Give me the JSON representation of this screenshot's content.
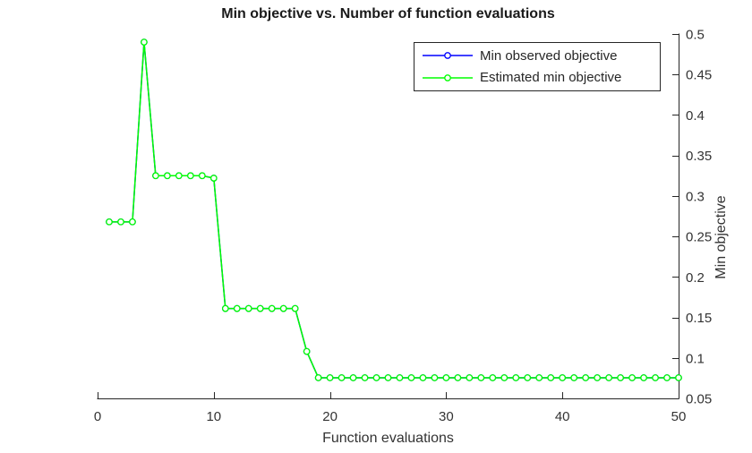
{
  "title": "Min objective vs. Number of function evaluations",
  "colors": {
    "observed_series": "#0000ff",
    "estimated_series": "#00ff00",
    "axis_line": "#262626",
    "tick_text": "#333333",
    "title_text": "#1a1a1a",
    "background": "#ffffff",
    "legend_border": "#262626",
    "marker_fill": "#ffffff"
  },
  "legend": {
    "position": "top-right",
    "items": [
      {
        "label": "Min observed objective",
        "color": "#0000ff",
        "marker": "circle"
      },
      {
        "label": "Estimated min objective",
        "color": "#00ff00",
        "marker": "circle"
      }
    ]
  },
  "chart_data": {
    "type": "line",
    "title": "Min objective vs. Number of function evaluations",
    "xlabel": "Function evaluations",
    "ylabel": "Min objective",
    "xlim": [
      0,
      50
    ],
    "ylim": [
      0.05,
      0.5
    ],
    "xticks": [
      0,
      10,
      20,
      30,
      40,
      50
    ],
    "xtick_labels": [
      "0",
      "10",
      "20",
      "30",
      "40",
      "50"
    ],
    "yticks": [
      0.05,
      0.1,
      0.15,
      0.2,
      0.25,
      0.3,
      0.35,
      0.4,
      0.45,
      0.5
    ],
    "ytick_labels": [
      "0.05",
      "0.1",
      "0.15",
      "0.2",
      "0.25",
      "0.3",
      "0.35",
      "0.4",
      "0.45",
      "0.5"
    ],
    "y_axis_location": "right",
    "grid": false,
    "x": [
      1,
      2,
      3,
      4,
      5,
      6,
      7,
      8,
      9,
      10,
      11,
      12,
      13,
      14,
      15,
      16,
      17,
      18,
      19,
      20,
      21,
      22,
      23,
      24,
      25,
      26,
      27,
      28,
      29,
      30,
      31,
      32,
      33,
      34,
      35,
      36,
      37,
      38,
      39,
      40,
      41,
      42,
      43,
      44,
      45,
      46,
      47,
      48,
      49,
      50
    ],
    "series": [
      {
        "name": "Min observed objective",
        "color": "#0000ff",
        "marker": "circle",
        "hidden_behind": "Estimated min objective",
        "values": [
          0.268,
          0.268,
          0.268,
          0.49,
          0.325,
          0.325,
          0.325,
          0.325,
          0.325,
          0.322,
          0.161,
          0.161,
          0.161,
          0.161,
          0.161,
          0.161,
          0.161,
          0.108,
          0.0755,
          0.0755,
          0.0755,
          0.0755,
          0.0755,
          0.0755,
          0.0755,
          0.0755,
          0.0755,
          0.0755,
          0.0755,
          0.0755,
          0.0755,
          0.0755,
          0.0755,
          0.0755,
          0.0755,
          0.0755,
          0.0755,
          0.0755,
          0.0755,
          0.0755,
          0.0755,
          0.0755,
          0.0755,
          0.0755,
          0.0755,
          0.0755,
          0.0755,
          0.0755,
          0.0755,
          0.0755
        ]
      },
      {
        "name": "Estimated min objective",
        "color": "#00ff00",
        "marker": "circle",
        "values": [
          0.268,
          0.268,
          0.268,
          0.49,
          0.325,
          0.325,
          0.325,
          0.325,
          0.325,
          0.322,
          0.161,
          0.161,
          0.161,
          0.161,
          0.161,
          0.161,
          0.161,
          0.108,
          0.0755,
          0.0755,
          0.0755,
          0.0755,
          0.0755,
          0.0755,
          0.0755,
          0.0755,
          0.0755,
          0.0755,
          0.0755,
          0.0755,
          0.0755,
          0.0755,
          0.0755,
          0.0755,
          0.0755,
          0.0755,
          0.0755,
          0.0755,
          0.0755,
          0.0755,
          0.0755,
          0.0755,
          0.0755,
          0.0755,
          0.0755,
          0.0755,
          0.0755,
          0.0755,
          0.0755,
          0.0755
        ]
      }
    ]
  }
}
